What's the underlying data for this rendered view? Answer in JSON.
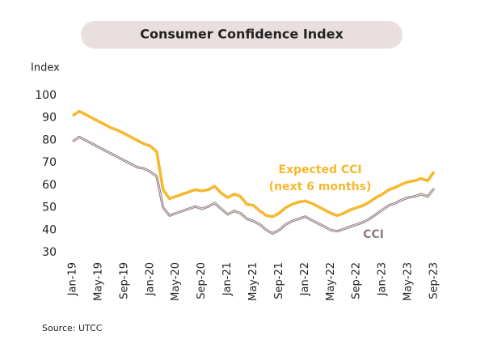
{
  "chart_data": {
    "type": "line",
    "title": "Consumer Confidence Index",
    "y_label": "Index",
    "source": "Source: UTCC",
    "annotation": "(next 6 months)",
    "categories": [
      "Jan-19",
      null,
      null,
      null,
      "May-19",
      null,
      null,
      null,
      "Sep-19",
      null,
      null,
      null,
      "Jan-20",
      null,
      null,
      null,
      "May-20",
      null,
      null,
      null,
      "Sep-20",
      null,
      null,
      null,
      "Jan-21",
      null,
      null,
      null,
      "May-21",
      null,
      null,
      null,
      "Sep-21",
      null,
      null,
      null,
      "Jan-22",
      null,
      null,
      null,
      "May-22",
      null,
      null,
      null,
      "Sep-22",
      null,
      null,
      null,
      "Jan-23",
      null,
      null,
      null,
      "May-23",
      null,
      null,
      null,
      "Sep-23"
    ],
    "series": [
      {
        "name": "Expected CCI",
        "color": "#f5b82e",
        "values": [
          91,
          93,
          91.5,
          90,
          88.5,
          87,
          85.5,
          84.5,
          83,
          81.5,
          80,
          78.5,
          77.5,
          75,
          58,
          54,
          55,
          56,
          57,
          58,
          57.5,
          58,
          59.5,
          56.5,
          54.5,
          56,
          55,
          51.5,
          51,
          48.5,
          46.5,
          46,
          47.5,
          50,
          51.5,
          52.5,
          53,
          52,
          50.5,
          49,
          47.5,
          46.5,
          47.5,
          49,
          50,
          51,
          52.5,
          54.5,
          56,
          58,
          59,
          60.5,
          61.5,
          62,
          63,
          62,
          66
        ]
      },
      {
        "name": "CCI",
        "color": "#8f7b7b",
        "values": [
          79.5,
          81.5,
          80,
          78.5,
          77,
          75.5,
          74,
          72.5,
          71,
          69.5,
          68,
          67.5,
          66,
          64,
          50,
          46.5,
          47.5,
          48.5,
          49.5,
          50.5,
          49.5,
          50.5,
          52,
          49.5,
          47,
          48.5,
          47.5,
          45,
          44,
          42.5,
          40,
          38.5,
          40,
          42.5,
          44,
          45,
          46,
          44.5,
          43,
          41.5,
          40,
          39.5,
          40.5,
          41.5,
          42.5,
          43.5,
          45,
          47,
          49,
          51,
          52,
          53.5,
          54.5,
          55,
          56,
          55,
          58.5
        ]
      }
    ],
    "ylim": [
      30,
      100
    ],
    "yticks": [
      30,
      40,
      50,
      60,
      70,
      80,
      90,
      100
    ],
    "grid": false
  }
}
